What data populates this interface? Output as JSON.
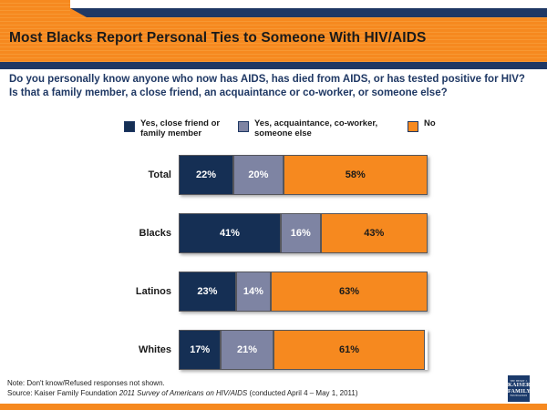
{
  "header": {
    "title": "Most Blacks Report Personal Ties to Someone With HIV/AIDS"
  },
  "question": {
    "line1": "Do you personally know anyone who now has AIDS, has died from AIDS, or has tested positive for HIV?",
    "line2": "Is that a family member, a close friend, an acquaintance or co-worker, or someone else?"
  },
  "legend": [
    {
      "label": "Yes, close friend or family member",
      "color": "#152F54"
    },
    {
      "label": "Yes, acquaintance, co-worker, someone else",
      "color": "#7E84A3"
    },
    {
      "label": "No",
      "color": "#F6891F"
    }
  ],
  "chart_data": {
    "type": "bar",
    "subtype": "stacked-horizontal",
    "categories": [
      "Total",
      "Blacks",
      "Latinos",
      "Whites"
    ],
    "series": [
      {
        "name": "Yes, close friend or family member",
        "color": "#152F54",
        "text_color": "#FFFFFF",
        "values": [
          22,
          41,
          23,
          17
        ]
      },
      {
        "name": "Yes, acquaintance, co-worker, someone else",
        "color": "#7E84A3",
        "text_color": "#FFFFFF",
        "values": [
          20,
          16,
          14,
          21
        ]
      },
      {
        "name": "No",
        "color": "#F6891F",
        "text_color": "#1A1A1A",
        "values": [
          58,
          43,
          63,
          61
        ]
      }
    ],
    "value_suffix": "%",
    "xlim": [
      0,
      100
    ],
    "grid": false,
    "legend_position": "top"
  },
  "footer": {
    "note": "Note: Don't know/Refused responses not shown.",
    "source_prefix": "Source: Kaiser Family Foundation ",
    "source_italic": "2011 Survey of Americans on HIV/AIDS",
    "source_suffix": " (conducted April 4 – May 1, 2011)",
    "logo": {
      "line1": "THE HENRY J.",
      "line2": "KAISER",
      "line3": "FAMILY",
      "line4": "FOUNDATION"
    }
  },
  "colors": {
    "banner_orange": "#F6891F",
    "banner_stripe": "#F79833",
    "band_navy": "#1F3864",
    "bar_navy": "#152F54",
    "bar_gray_blue": "#7E84A3",
    "bar_orange": "#F6891F",
    "question_navy": "#1F3864",
    "title_text": "#1A1A1A",
    "logo_navy": "#1B3A6B"
  }
}
